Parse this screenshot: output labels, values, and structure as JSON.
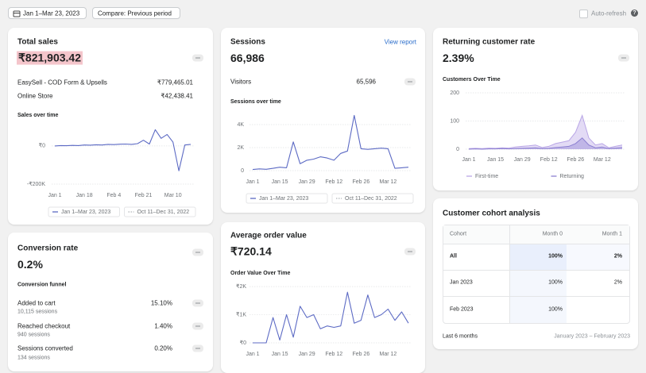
{
  "dashboard": {
    "toolbar": {
      "date_range": "Jan 1–Mar 23, 2023",
      "compare": "Compare: Previous period",
      "auto_refresh": "Auto-refresh"
    },
    "total_sales": {
      "title": "Total sales",
      "value": "₹821,903.42",
      "breakdown": [
        {
          "label": "EasySell - COD Form & Upsells",
          "value": "₹779,465.01"
        },
        {
          "label": "Online Store",
          "value": "₹42,438.41"
        }
      ]
    },
    "sessions": {
      "title": "Sessions",
      "link": "View report",
      "value": "66,986",
      "visitors_label": "Visitors",
      "visitors_value": "65,596"
    },
    "returning": {
      "title": "Returning customer rate",
      "value": "2.39%"
    },
    "conversion": {
      "title": "Conversion rate",
      "value": "0.2%",
      "funnel_title": "Conversion funnel",
      "steps": [
        {
          "label": "Added to cart",
          "sessions": "10,115 sessions",
          "rate": "15.10%"
        },
        {
          "label": "Reached checkout",
          "sessions": "940 sessions",
          "rate": "1.40%"
        },
        {
          "label": "Sessions converted",
          "sessions": "134 sessions",
          "rate": "0.20%"
        }
      ]
    },
    "aov": {
      "title": "Average order value",
      "value": "₹720.14"
    },
    "cohort": {
      "title": "Customer cohort analysis",
      "header": [
        "Cohort",
        "Month 0",
        "Month 1"
      ],
      "rows": [
        [
          "All",
          "100%",
          "2%"
        ],
        [
          "Jan 2023",
          "100%",
          "2%"
        ],
        [
          "Feb 2023",
          "100%"
        ]
      ],
      "footer_left": "Last 6 months",
      "footer_right": "January 2023 – February 2023"
    }
  },
  "chart_data": [
    {
      "type": "line",
      "title": "Sales over time",
      "categories": [
        "Jan 1",
        null,
        null,
        null,
        null,
        "Jan 18",
        null,
        null,
        null,
        null,
        "Feb 4",
        null,
        null,
        null,
        null,
        "Feb 21",
        null,
        null,
        null,
        null,
        "Mar 10",
        null,
        null,
        null
      ],
      "series": [
        {
          "name": "Jan 1–Mar 23, 2023",
          "color": "#5c6ac4",
          "values": [
            0,
            2000,
            1000,
            3000,
            2000,
            5000,
            4000,
            6000,
            5000,
            8000,
            7000,
            9000,
            10000,
            8000,
            12000,
            30000,
            10000,
            85000,
            40000,
            60000,
            20000,
            -130000,
            5000,
            8000
          ]
        }
      ],
      "comparison": "Oct 11–Dec 31, 2022",
      "ylim": [
        -200000,
        120000
      ],
      "yticks": [
        {
          "value": -200000,
          "label": "-₹200K"
        },
        {
          "value": 0,
          "label": "₹0"
        }
      ]
    },
    {
      "type": "line",
      "title": "Sessions over time",
      "categories": [
        "Jan 1",
        null,
        null,
        null,
        "Jan 15",
        null,
        null,
        null,
        "Jan 29",
        null,
        null,
        null,
        "Feb 12",
        null,
        null,
        null,
        "Feb 26",
        null,
        null,
        null,
        "Mar 12",
        null,
        null,
        null
      ],
      "series": [
        {
          "name": "Jan 1–Mar 23, 2023",
          "color": "#5c6ac4",
          "values": [
            100,
            150,
            120,
            200,
            300,
            250,
            2500,
            600,
            900,
            1000,
            1200,
            1100,
            900,
            1500,
            1700,
            4800,
            1900,
            1850,
            1900,
            1950,
            1900,
            200,
            250,
            300
          ]
        }
      ],
      "comparison": "Oct 11–Dec 31, 2022",
      "ylim": [
        0,
        5000
      ],
      "yticks": [
        0,
        {
          "value": 2000,
          "label": "2K"
        },
        {
          "value": 4000,
          "label": "4K"
        }
      ]
    },
    {
      "type": "area",
      "title": "Customers Over Time",
      "categories": [
        "Jan 1",
        null,
        null,
        null,
        "Jan 15",
        null,
        null,
        null,
        "Jan 29",
        null,
        null,
        null,
        "Feb 12",
        null,
        null,
        null,
        "Feb 26",
        null,
        null,
        null,
        "Mar 12",
        null,
        null,
        null
      ],
      "series": [
        {
          "name": "First-time",
          "color": "#b9a6e6",
          "values": [
            2,
            3,
            2,
            4,
            3,
            5,
            4,
            8,
            10,
            12,
            15,
            6,
            10,
            20,
            25,
            30,
            60,
            120,
            40,
            15,
            20,
            5,
            10,
            15
          ]
        },
        {
          "name": "Returning",
          "color": "#8b7fd1",
          "values": [
            0,
            1,
            0,
            1,
            1,
            2,
            1,
            2,
            3,
            4,
            5,
            2,
            3,
            6,
            8,
            10,
            20,
            40,
            15,
            5,
            8,
            2,
            4,
            6
          ]
        }
      ],
      "ylim": [
        0,
        200
      ],
      "yticks": [
        0,
        100,
        200
      ]
    },
    {
      "type": "line",
      "title": "Order Value Over Time",
      "categories": [
        "Jan 1",
        null,
        null,
        null,
        "Jan 15",
        null,
        null,
        null,
        "Jan 29",
        null,
        null,
        null,
        "Feb 12",
        null,
        null,
        null,
        "Feb 26",
        null,
        null,
        null,
        "Mar 12",
        null,
        null,
        null
      ],
      "series": [
        {
          "name": "Jan 1–Mar 23, 2023",
          "color": "#5c6ac4",
          "values": [
            0,
            0,
            0,
            900,
            100,
            1000,
            200,
            1300,
            900,
            1000,
            500,
            600,
            550,
            600,
            1800,
            700,
            800,
            1700,
            900,
            1000,
            1200,
            800,
            1100,
            700
          ]
        }
      ],
      "ylim": [
        0,
        2200
      ],
      "yticks": [
        {
          "value": 0,
          "label": "₹0"
        },
        {
          "value": 1000,
          "label": "₹1K"
        },
        {
          "value": 2000,
          "label": "₹2K"
        }
      ]
    }
  ]
}
